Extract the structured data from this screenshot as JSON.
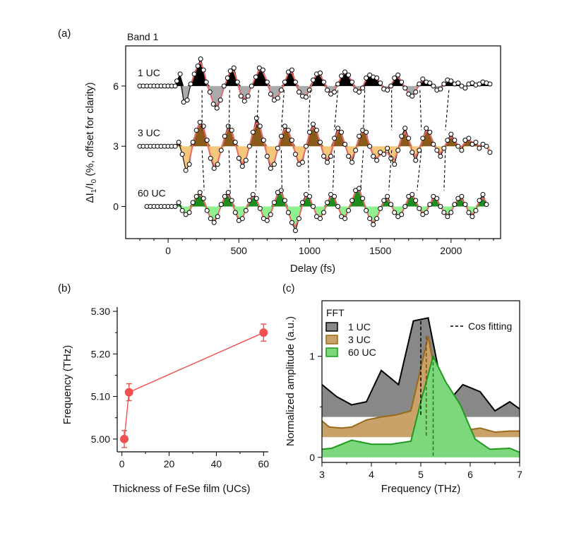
{
  "chart_data": [
    {
      "panel": "(a)",
      "type": "line",
      "title": "Band 1",
      "xlabel": "Delay (fs)",
      "ylabel": "ΔI1/I0 (%, offset for clarity)",
      "xlim": [
        -300,
        2350
      ],
      "ylim": [
        -1.6,
        8.0
      ],
      "xticks": [
        0,
        500,
        1000,
        1500,
        2000
      ],
      "yticks": [
        0,
        3,
        6
      ],
      "series": [
        {
          "name": "1 UC",
          "offset": 6,
          "fill_color": "#000000",
          "neg_fill_color": "#aaaaaa",
          "x": [
            -200,
            -175,
            -150,
            -125,
            -100,
            -75,
            -50,
            -25,
            0,
            25,
            50,
            62,
            85,
            110,
            135,
            160,
            185,
            210,
            230,
            250,
            270,
            295,
            320,
            345,
            370,
            395,
            420,
            440,
            465,
            490,
            515,
            540,
            565,
            590,
            620,
            645,
            670,
            700,
            725,
            750,
            775,
            800,
            825,
            850,
            875,
            900,
            925,
            950,
            975,
            1000,
            1025,
            1050,
            1075,
            1100,
            1125,
            1150,
            1175,
            1200,
            1225,
            1250,
            1275,
            1300,
            1325,
            1350,
            1375,
            1400,
            1425,
            1450,
            1475,
            1500,
            1525,
            1550,
            1575,
            1600,
            1625,
            1650,
            1675,
            1700,
            1725,
            1750,
            1775,
            1800,
            1825,
            1850,
            1875,
            1900,
            1925,
            1950,
            1975,
            2000,
            2025,
            2050,
            2075,
            2100,
            2125,
            2150,
            2175,
            2200,
            2225,
            2250,
            2275
          ],
          "y": [
            0,
            0,
            0,
            0,
            0,
            0,
            0,
            0,
            0,
            0,
            0,
            0.25,
            0.6,
            -0.8,
            -0.7,
            0.1,
            0.6,
            1.0,
            1.35,
            0.8,
            0.2,
            -0.3,
            -0.9,
            -1.1,
            -0.7,
            0.0,
            0.4,
            0.75,
            0.9,
            0.2,
            -0.5,
            -0.75,
            -0.5,
            0.0,
            0.45,
            0.9,
            0.8,
            0.2,
            -0.4,
            -0.7,
            -0.6,
            -0.2,
            0.2,
            0.7,
            0.8,
            0.2,
            -0.3,
            -0.5,
            -0.55,
            -0.2,
            0.3,
            0.6,
            0.65,
            0.2,
            -0.2,
            -0.4,
            -0.3,
            0.1,
            0.5,
            0.7,
            0.55,
            0.2,
            -0.2,
            -0.3,
            -0.1,
            0.4,
            0.55,
            0.45,
            0.4,
            0.15,
            -0.15,
            -0.2,
            0.0,
            0.4,
            0.55,
            0.2,
            -0.1,
            -0.4,
            -0.5,
            -0.3,
            0.1,
            0.35,
            0.2,
            0.15,
            0.0,
            -0.2,
            -0.15,
            0.1,
            0.3,
            0.25,
            0.1,
            0.15,
            0.0,
            -0.1,
            0.1,
            0.15,
            0.05,
            0.1,
            0.2,
            0.15,
            0.1
          ]
        },
        {
          "name": "3 UC",
          "offset": 3,
          "fill_color": "#8a5a1a",
          "neg_fill_color": "#f5c77a",
          "x": [
            -200,
            -175,
            -150,
            -125,
            -100,
            -75,
            -50,
            -25,
            0,
            25,
            50,
            75,
            100,
            125,
            150,
            175,
            200,
            225,
            250,
            275,
            300,
            325,
            350,
            375,
            400,
            425,
            450,
            475,
            500,
            525,
            550,
            575,
            600,
            625,
            650,
            675,
            700,
            725,
            750,
            775,
            800,
            825,
            850,
            875,
            900,
            925,
            950,
            975,
            1000,
            1025,
            1050,
            1075,
            1100,
            1125,
            1150,
            1175,
            1200,
            1225,
            1250,
            1275,
            1300,
            1325,
            1350,
            1375,
            1400,
            1425,
            1450,
            1475,
            1500,
            1525,
            1550,
            1575,
            1600,
            1625,
            1650,
            1675,
            1700,
            1725,
            1750,
            1775,
            1800,
            1825,
            1850,
            1875,
            1900,
            1925,
            1950,
            1975,
            2000,
            2025,
            2050,
            2075,
            2100,
            2125,
            2150,
            2175,
            2200,
            2225,
            2250,
            2275
          ],
          "y": [
            0,
            0,
            0,
            0,
            0,
            0,
            0,
            0,
            0,
            0,
            0,
            0.2,
            -0.4,
            -1.2,
            -0.9,
            0.2,
            0.8,
            1.2,
            1.0,
            0.3,
            -0.6,
            -1.1,
            -0.9,
            -0.2,
            0.5,
            1.0,
            0.8,
            0.2,
            -0.6,
            -1.0,
            -0.7,
            0.0,
            0.7,
            1.4,
            1.0,
            0.3,
            -0.5,
            -1.1,
            -0.9,
            -0.1,
            0.5,
            1.0,
            0.8,
            0.3,
            -0.4,
            -0.9,
            -0.8,
            0.0,
            0.7,
            1.1,
            0.8,
            0.2,
            -0.5,
            -0.8,
            -0.5,
            0.4,
            0.9,
            0.7,
            0.1,
            -0.5,
            -0.8,
            -0.2,
            0.5,
            0.8,
            0.7,
            0.0,
            -0.5,
            -0.7,
            -0.3,
            -0.4,
            -0.1,
            -0.6,
            -0.9,
            -0.2,
            0.5,
            0.9,
            0.4,
            -0.3,
            -0.7,
            -0.2,
            0.4,
            0.9,
            0.7,
            0.1,
            -0.2,
            -0.5,
            -0.1,
            0.3,
            0.6,
            0.3,
            0.0,
            -0.2,
            0.3,
            0.4,
            0.1,
            0.2,
            -0.1,
            0.1,
            0.0,
            -0.3
          ]
        },
        {
          "name": "60 UC",
          "offset": 0,
          "fill_color": "#1e8c1e",
          "neg_fill_color": "#8ef08e",
          "x": [
            -150,
            -125,
            -100,
            -75,
            -50,
            -25,
            0,
            25,
            50,
            75,
            100,
            125,
            150,
            175,
            200,
            225,
            250,
            275,
            300,
            325,
            350,
            375,
            400,
            425,
            450,
            475,
            500,
            525,
            550,
            575,
            600,
            625,
            650,
            675,
            700,
            725,
            750,
            775,
            800,
            825,
            850,
            875,
            900,
            925,
            950,
            975,
            1000,
            1025,
            1050,
            1075,
            1100,
            1125,
            1150,
            1175,
            1200,
            1225,
            1250,
            1275,
            1300,
            1325,
            1350,
            1375,
            1400,
            1425,
            1450,
            1475,
            1500,
            1525,
            1550,
            1575,
            1600,
            1625,
            1650,
            1675,
            1700,
            1725,
            1750,
            1775,
            1800,
            1825,
            1850,
            1875,
            1900,
            1925,
            1950,
            1975,
            2000,
            2025,
            2050,
            2075,
            2100,
            2125,
            2150,
            2175,
            2200,
            2225,
            2250
          ],
          "y": [
            0,
            0,
            0,
            0,
            0,
            0,
            0,
            0,
            0,
            0.2,
            -0.2,
            -0.4,
            -0.3,
            0.2,
            0.5,
            0.7,
            0.4,
            -0.2,
            -0.6,
            -0.8,
            -0.5,
            0.1,
            0.5,
            0.7,
            0.3,
            -0.3,
            -0.7,
            -0.6,
            -0.2,
            0.3,
            0.6,
            0.4,
            -0.1,
            -0.6,
            -0.7,
            -0.4,
            0.2,
            0.7,
            0.8,
            0.3,
            -0.3,
            -0.8,
            -1.2,
            -0.6,
            0.2,
            0.6,
            0.5,
            0.0,
            -0.5,
            -0.6,
            -0.3,
            0.2,
            0.6,
            0.5,
            0.0,
            -0.5,
            -0.6,
            -0.2,
            0.3,
            0.8,
            0.9,
            0.4,
            -0.2,
            -0.6,
            -0.9,
            -0.6,
            -0.1,
            0.3,
            0.5,
            0.1,
            -0.3,
            -0.5,
            -0.4,
            0.0,
            0.5,
            0.6,
            0.3,
            -0.1,
            -0.4,
            -0.3,
            0.1,
            0.5,
            0.4,
            0.0,
            -0.3,
            -0.5,
            -0.3,
            0.1,
            0.4,
            0.5,
            0.1,
            -0.3,
            -0.5,
            -0.2,
            0.3,
            0.6,
            0.1
          ]
        }
      ],
      "fit_color": "#e86a6a",
      "dashed_link_color": "#000000"
    },
    {
      "panel": "(b)",
      "type": "scatter",
      "xlabel": "Thickness of FeSe film (UCs)",
      "ylabel": "Frequency (THz)",
      "xlim": [
        -2,
        62
      ],
      "ylim": [
        4.97,
        5.31
      ],
      "xticks": [
        0,
        20,
        40,
        60
      ],
      "yticks": [
        5.0,
        5.1,
        5.2,
        5.3
      ],
      "ytick_labels": [
        "5.00",
        "5.10",
        "5.20",
        "5.30"
      ],
      "x": [
        1,
        3,
        60
      ],
      "y": [
        5.0,
        5.11,
        5.25
      ],
      "yerr": [
        0.02,
        0.02,
        0.02
      ],
      "color": "#f05050"
    },
    {
      "panel": "(c)",
      "type": "area",
      "xlabel": "Frequency (THz)",
      "ylabel": "Normalized amplitude (a.u.)",
      "xlim": [
        3,
        7
      ],
      "ylim": [
        -0.05,
        1.55
      ],
      "xticks": [
        3,
        4,
        5,
        6,
        7
      ],
      "yticks": [
        0,
        1
      ],
      "legend_title": "FFT",
      "legend_position": "top-left",
      "fit_legend": "Cos fitting",
      "series": [
        {
          "name": "1 UC",
          "baseline": 0.4,
          "fill": "#888888",
          "line": "#000000",
          "x": [
            3.0,
            3.3,
            3.6,
            3.9,
            4.2,
            4.55,
            4.85,
            5.15,
            5.5,
            5.85,
            6.2,
            6.5,
            6.8,
            7.0
          ],
          "y": [
            0.72,
            0.6,
            0.52,
            0.55,
            0.86,
            0.72,
            1.35,
            1.38,
            0.52,
            0.72,
            0.65,
            0.46,
            0.55,
            0.48
          ]
        },
        {
          "name": "3 UC",
          "baseline": 0.2,
          "fill": "#c9a26a",
          "line": "#9a6a1a",
          "x": [
            3.0,
            3.15,
            3.4,
            3.6,
            3.9,
            4.2,
            4.5,
            4.8,
            5.15,
            5.45,
            5.8,
            6.2,
            6.5,
            6.8,
            7.0
          ],
          "y": [
            0.36,
            0.3,
            0.29,
            0.3,
            0.37,
            0.4,
            0.42,
            0.46,
            1.2,
            0.4,
            0.26,
            0.29,
            0.25,
            0.26,
            0.26
          ]
        },
        {
          "name": "60 UC",
          "baseline": 0.0,
          "fill": "#7dd87d",
          "line": "#1e9a1e",
          "x": [
            3.0,
            3.2,
            3.6,
            4.0,
            4.4,
            4.8,
            5.0,
            5.25,
            5.5,
            5.8,
            6.1,
            6.4,
            6.8,
            7.0
          ],
          "y": [
            0.08,
            0.09,
            0.17,
            0.13,
            0.13,
            0.16,
            0.55,
            1.0,
            0.75,
            0.52,
            0.18,
            0.08,
            0.09,
            0.05
          ]
        }
      ],
      "fit_lines": [
        {
          "x": 5.0,
          "y_top": 1.35,
          "y_bottom": 0.4,
          "color": "#000000"
        },
        {
          "x": 5.11,
          "y_top": 1.2,
          "y_bottom": 0.2,
          "color": "#7a4e10"
        },
        {
          "x": 5.25,
          "y_top": 1.0,
          "y_bottom": 0.0,
          "color": "#1e7a1e"
        }
      ]
    }
  ]
}
